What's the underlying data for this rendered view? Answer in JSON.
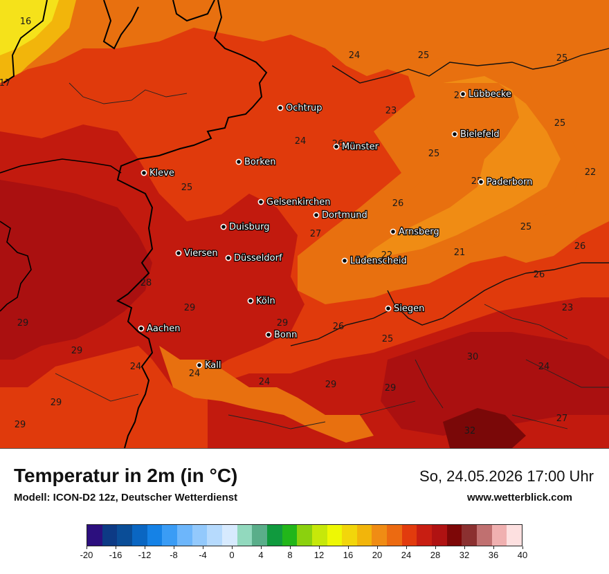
{
  "title": "Temperatur in 2m (in °C)",
  "model": "Modell: ICON-D2 12z, Deutscher Wetterdienst",
  "datetime": "So, 24.05.2026 17:00 Uhr",
  "website": "www.wetterblick.com",
  "colors": {
    "t16": "#f5e21a",
    "t22": "#f08c14",
    "t24": "#e8700f",
    "t26": "#e03a0c",
    "t28": "#c21a0e",
    "t30": "#aa1010",
    "t32": "#7a0808",
    "border_country": "#000000",
    "border_region": "#222222"
  },
  "cities": [
    {
      "name": "Lübbecke"
    },
    {
      "name": "Ochtrup"
    },
    {
      "name": "Bielefeld"
    },
    {
      "name": "Münster"
    },
    {
      "name": "Borken"
    },
    {
      "name": "Paderborn"
    },
    {
      "name": "Kleve"
    },
    {
      "name": "Gelsenkirchen"
    },
    {
      "name": "Dortmund"
    },
    {
      "name": "Duisburg"
    },
    {
      "name": "Arnsberg"
    },
    {
      "name": "Viersen"
    },
    {
      "name": "Düsseldorf"
    },
    {
      "name": "Lüdenscheid"
    },
    {
      "name": "Köln"
    },
    {
      "name": "Siegen"
    },
    {
      "name": "Aachen"
    },
    {
      "name": "Bonn"
    },
    {
      "name": "Kall"
    }
  ],
  "iso_labels": [
    "16",
    "17",
    "24",
    "25",
    "25",
    "23",
    "23",
    "25",
    "25",
    "24",
    "26",
    "22",
    "25",
    "26",
    "25",
    "27",
    "26",
    "22",
    "21",
    "25",
    "26",
    "28",
    "23",
    "29",
    "29",
    "29",
    "26",
    "29",
    "25",
    "30",
    "24",
    "24",
    "24",
    "24",
    "29",
    "29",
    "29",
    "29",
    "27",
    "32"
  ],
  "legend": {
    "colors": [
      "#2c0f7e",
      "#0d3a85",
      "#0a4d97",
      "#0a66c2",
      "#1582e6",
      "#3a9cf5",
      "#6db6fb",
      "#93c9fc",
      "#b6dafd",
      "#d7eafe",
      "#92d9be",
      "#5aae8a",
      "#109a3e",
      "#22b61a",
      "#8bd10e",
      "#c6e80a",
      "#eef804",
      "#f2d60b",
      "#f2b50b",
      "#f08c14",
      "#ec6a11",
      "#e23b0d",
      "#c81e12",
      "#b01212",
      "#7d0707",
      "#8b3030",
      "#c07070",
      "#f0b0b0",
      "#fde0e0"
    ],
    "ticks": [
      "-20",
      "-16",
      "-12",
      "-8",
      "-4",
      "0",
      "4",
      "8",
      "12",
      "16",
      "20",
      "24",
      "28",
      "32",
      "36",
      "40"
    ]
  }
}
